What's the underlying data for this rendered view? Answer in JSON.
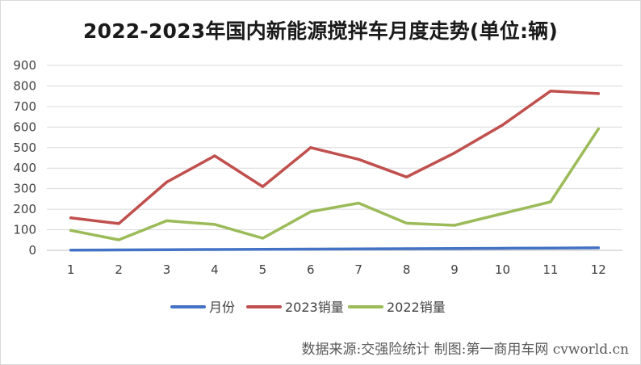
{
  "title": "2022-2023年国内新能源搅拌车月度走势(单位:辆)",
  "source": "数据来源:交强险统计 制图:第一商用车网 cvworld.cn",
  "chart_data": {
    "type": "line",
    "title": "2022-2023年国内新能源搅拌车月度走势(单位:辆)",
    "xlabel": "",
    "ylabel": "",
    "x": [
      1,
      2,
      3,
      4,
      5,
      6,
      7,
      8,
      9,
      10,
      11,
      12
    ],
    "x_tick_labels": [
      "1",
      "2",
      "3",
      "4",
      "5",
      "6",
      "7",
      "8",
      "9",
      "10",
      "11",
      "12"
    ],
    "ylim": [
      0,
      900
    ],
    "y_ticks": [
      0,
      100,
      200,
      300,
      400,
      500,
      600,
      700,
      800,
      900
    ],
    "y_tick_labels": [
      "0",
      "100",
      "200",
      "300",
      "400",
      "500",
      "600",
      "700",
      "800",
      "900"
    ],
    "grid": true,
    "legend_position": "bottom",
    "series": [
      {
        "name": "月份",
        "color": "#4472c4",
        "values": [
          1,
          2,
          3,
          4,
          5,
          6,
          7,
          8,
          9,
          10,
          11,
          12
        ]
      },
      {
        "name": "2023销量",
        "color": "#c0504d",
        "values": [
          158,
          130,
          332,
          460,
          310,
          500,
          443,
          357,
          474,
          610,
          775,
          763
        ]
      },
      {
        "name": "2022销量",
        "color": "#9bbb59",
        "values": [
          97,
          51,
          144,
          126,
          59,
          188,
          230,
          132,
          122,
          179,
          236,
          591
        ]
      }
    ]
  }
}
